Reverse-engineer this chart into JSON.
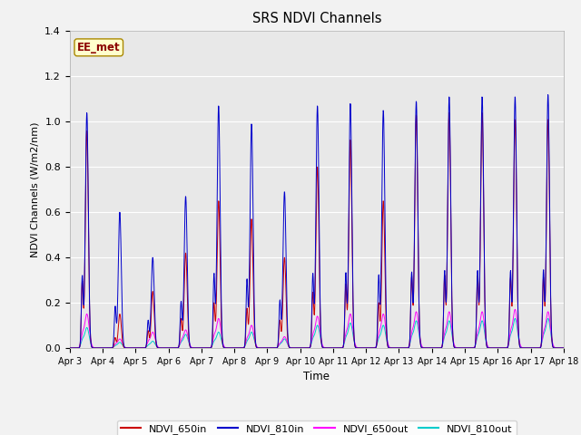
{
  "title": "SRS NDVI Channels",
  "xlabel": "Time",
  "ylabel": "NDVI Channels (W/m2/nm)",
  "ylim": [
    0,
    1.4
  ],
  "annotation": "EE_met",
  "fig_bg_color": "#f2f2f2",
  "plot_bg_color": "#e8e8e8",
  "colors": {
    "NDVI_650in": "#cc0000",
    "NDVI_810in": "#0000cc",
    "NDVI_650out": "#ff00ff",
    "NDVI_810out": "#00cccc"
  },
  "x_tick_labels": [
    "Apr 3",
    "Apr 4",
    "Apr 5",
    "Apr 6",
    "Apr 7",
    "Apr 8",
    "Apr 9",
    "Apr 10",
    "Apr 11",
    "Apr 12",
    "Apr 13",
    "Apr 14",
    "Apr 15",
    "Apr 16",
    "Apr 17",
    "Apr 18"
  ],
  "daily_peaks_810in": [
    1.04,
    0.6,
    0.4,
    0.67,
    1.07,
    0.99,
    0.69,
    1.07,
    1.08,
    1.05,
    1.09,
    1.11,
    1.11,
    1.11,
    1.12
  ],
  "daily_peaks_650in": [
    0.96,
    0.15,
    0.25,
    0.42,
    0.65,
    0.57,
    0.4,
    0.8,
    0.92,
    0.65,
    1.03,
    1.04,
    1.04,
    1.01,
    1.01
  ],
  "daily_peaks_650out": [
    0.15,
    0.04,
    0.07,
    0.08,
    0.13,
    0.1,
    0.05,
    0.14,
    0.15,
    0.15,
    0.16,
    0.16,
    0.16,
    0.17,
    0.16
  ],
  "daily_peaks_810out": [
    0.09,
    0.025,
    0.03,
    0.06,
    0.07,
    0.07,
    0.04,
    0.1,
    0.11,
    0.1,
    0.12,
    0.12,
    0.12,
    0.13,
    0.13
  ],
  "samples_per_day": 120,
  "peak_sigma_810in": 0.045,
  "peak_sigma_650in": 0.045,
  "peak_sigma_650out": 0.07,
  "peak_sigma_810out": 0.07
}
